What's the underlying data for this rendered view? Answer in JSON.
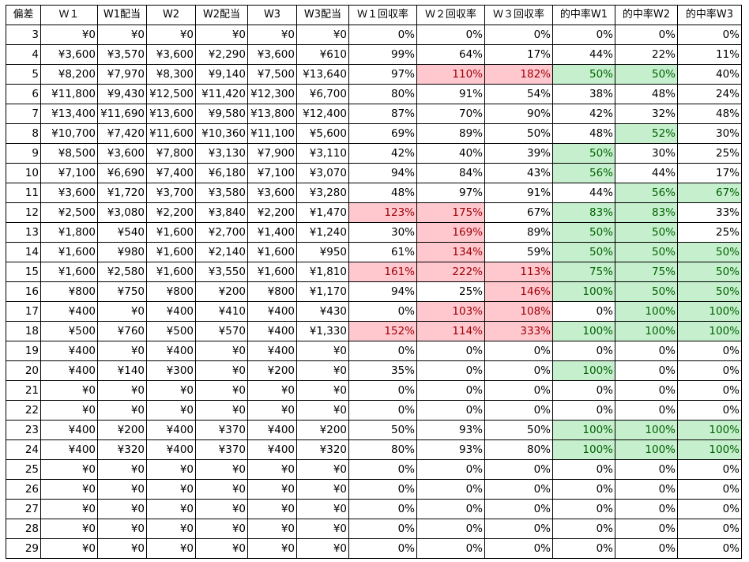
{
  "headers": [
    "偏差",
    "Ｗ１",
    "W1配当",
    "W2",
    "W2配当",
    "W3",
    "W3配当",
    "Ｗ１回収率",
    "Ｗ２回収率",
    "Ｗ３回収率",
    "的中率W1",
    "的中率W2",
    "的中率W3"
  ],
  "rows": [
    [
      "3",
      "¥0",
      "¥0",
      "¥0",
      "¥0",
      "¥0",
      "¥0",
      "0%",
      "0%",
      "0%",
      "0%",
      "0%",
      "0%"
    ],
    [
      "4",
      "¥3,600",
      "¥3,570",
      "¥3,600",
      "¥2,290",
      "¥3,600",
      "¥610",
      "99%",
      "64%",
      "17%",
      "44%",
      "22%",
      "11%"
    ],
    [
      "5",
      "¥8,200",
      "¥7,970",
      "¥8,300",
      "¥9,140",
      "¥7,500",
      "¥13,640",
      "97%",
      "110%",
      "182%",
      "50%",
      "50%",
      "40%"
    ],
    [
      "6",
      "¥11,800",
      "¥9,430",
      "¥12,500",
      "¥11,420",
      "¥12,300",
      "¥6,700",
      "80%",
      "91%",
      "54%",
      "38%",
      "48%",
      "24%"
    ],
    [
      "7",
      "¥13,400",
      "¥11,690",
      "¥13,600",
      "¥9,580",
      "¥13,800",
      "¥12,400",
      "87%",
      "70%",
      "90%",
      "42%",
      "32%",
      "48%"
    ],
    [
      "8",
      "¥10,700",
      "¥7,420",
      "¥11,600",
      "¥10,360",
      "¥11,100",
      "¥5,600",
      "69%",
      "89%",
      "50%",
      "48%",
      "52%",
      "30%"
    ],
    [
      "9",
      "¥8,500",
      "¥3,600",
      "¥7,800",
      "¥3,130",
      "¥7,900",
      "¥3,110",
      "42%",
      "40%",
      "39%",
      "50%",
      "30%",
      "25%"
    ],
    [
      "10",
      "¥7,100",
      "¥6,690",
      "¥7,400",
      "¥6,180",
      "¥7,100",
      "¥3,070",
      "94%",
      "84%",
      "43%",
      "56%",
      "44%",
      "17%"
    ],
    [
      "11",
      "¥3,600",
      "¥1,720",
      "¥3,700",
      "¥3,580",
      "¥3,600",
      "¥3,280",
      "48%",
      "97%",
      "91%",
      "44%",
      "56%",
      "67%"
    ],
    [
      "12",
      "¥2,500",
      "¥3,080",
      "¥2,200",
      "¥3,840",
      "¥2,200",
      "¥1,470",
      "123%",
      "175%",
      "67%",
      "83%",
      "83%",
      "33%"
    ],
    [
      "13",
      "¥1,800",
      "¥540",
      "¥1,600",
      "¥2,700",
      "¥1,400",
      "¥1,240",
      "30%",
      "169%",
      "89%",
      "50%",
      "50%",
      "25%"
    ],
    [
      "14",
      "¥1,600",
      "¥980",
      "¥1,600",
      "¥2,140",
      "¥1,600",
      "¥950",
      "61%",
      "134%",
      "59%",
      "50%",
      "50%",
      "50%"
    ],
    [
      "15",
      "¥1,600",
      "¥2,580",
      "¥1,600",
      "¥3,550",
      "¥1,600",
      "¥1,810",
      "161%",
      "222%",
      "113%",
      "75%",
      "75%",
      "50%"
    ],
    [
      "16",
      "¥800",
      "¥750",
      "¥800",
      "¥200",
      "¥800",
      "¥1,170",
      "94%",
      "25%",
      "146%",
      "100%",
      "50%",
      "50%"
    ],
    [
      "17",
      "¥400",
      "¥0",
      "¥400",
      "¥410",
      "¥400",
      "¥430",
      "0%",
      "103%",
      "108%",
      "0%",
      "100%",
      "100%"
    ],
    [
      "18",
      "¥500",
      "¥760",
      "¥500",
      "¥570",
      "¥400",
      "¥1,330",
      "152%",
      "114%",
      "333%",
      "100%",
      "100%",
      "100%"
    ],
    [
      "19",
      "¥400",
      "¥0",
      "¥400",
      "¥0",
      "¥400",
      "¥0",
      "0%",
      "0%",
      "0%",
      "0%",
      "0%",
      "0%"
    ],
    [
      "20",
      "¥400",
      "¥140",
      "¥300",
      "¥0",
      "¥200",
      "¥0",
      "35%",
      "0%",
      "0%",
      "100%",
      "0%",
      "0%"
    ],
    [
      "21",
      "¥0",
      "¥0",
      "¥0",
      "¥0",
      "¥0",
      "¥0",
      "0%",
      "0%",
      "0%",
      "0%",
      "0%",
      "0%"
    ],
    [
      "22",
      "¥0",
      "¥0",
      "¥0",
      "¥0",
      "¥0",
      "¥0",
      "0%",
      "0%",
      "0%",
      "0%",
      "0%",
      "0%"
    ],
    [
      "23",
      "¥400",
      "¥200",
      "¥400",
      "¥370",
      "¥400",
      "¥200",
      "50%",
      "93%",
      "50%",
      "100%",
      "100%",
      "100%"
    ],
    [
      "24",
      "¥400",
      "¥320",
      "¥400",
      "¥370",
      "¥400",
      "¥320",
      "80%",
      "93%",
      "80%",
      "100%",
      "100%",
      "100%"
    ],
    [
      "25",
      "¥0",
      "¥0",
      "¥0",
      "¥0",
      "¥0",
      "¥0",
      "0%",
      "0%",
      "0%",
      "0%",
      "0%",
      "0%"
    ],
    [
      "26",
      "¥0",
      "¥0",
      "¥0",
      "¥0",
      "¥0",
      "¥0",
      "0%",
      "0%",
      "0%",
      "0%",
      "0%",
      "0%"
    ],
    [
      "27",
      "¥0",
      "¥0",
      "¥0",
      "¥0",
      "¥0",
      "¥0",
      "0%",
      "0%",
      "0%",
      "0%",
      "0%",
      "0%"
    ],
    [
      "28",
      "¥0",
      "¥0",
      "¥0",
      "¥0",
      "¥0",
      "¥0",
      "0%",
      "0%",
      "0%",
      "0%",
      "0%",
      "0%"
    ],
    [
      "29",
      "¥0",
      "¥0",
      "¥0",
      "¥0",
      "¥0",
      "¥0",
      "0%",
      "0%",
      "0%",
      "0%",
      "0%",
      "0%"
    ]
  ],
  "highlight": {
    "red_rule": "回収率 > 100%",
    "green_rule": "的中率 >= 50%",
    "red_bg": "#ffc7ce",
    "green_bg": "#c6efce"
  }
}
